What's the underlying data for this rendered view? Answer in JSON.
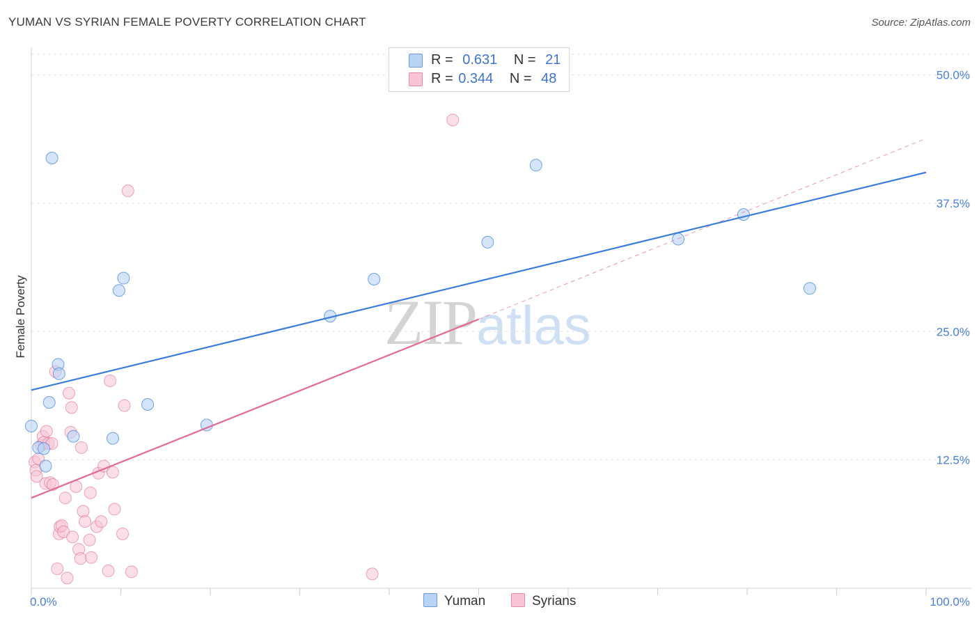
{
  "header": {
    "title": "YUMAN VS SYRIAN FEMALE POVERTY CORRELATION CHART",
    "source": "Source: ZipAtlas.com"
  },
  "watermark": {
    "zip": "ZIP",
    "atlas": "atlas"
  },
  "legend": {
    "items": [
      {
        "r_label": "R = ",
        "r_value": "0.631",
        "n_label": "N = ",
        "n_value": "21"
      },
      {
        "r_label": "R = ",
        "r_value": "0.344",
        "n_label": "N = ",
        "n_value": "48"
      }
    ]
  },
  "bottom_legend": {
    "yuman": "Yuman",
    "syrians": "Syrians"
  },
  "chart_data": {
    "type": "scatter",
    "title": "YUMAN VS SYRIAN FEMALE POVERTY CORRELATION CHART",
    "xlabel": "",
    "ylabel": "Female Poverty",
    "xlim": [
      0,
      100
    ],
    "ylim": [
      0,
      52
    ],
    "x_tick_labels": [
      "0.0%",
      "100.0%"
    ],
    "y_ticks": [
      12.5,
      25.0,
      37.5,
      50.0
    ],
    "y_tick_labels": [
      "12.5%",
      "25.0%",
      "37.5%",
      "50.0%"
    ],
    "grid": true,
    "legend_position": "top-center",
    "colors": {
      "yuman": "#3b7dd8",
      "yuman_fill": "#b9d3f5",
      "syrians": "#e06a93",
      "syrians_fill": "#f8c4d6"
    },
    "series": [
      {
        "name": "Yuman",
        "r": 0.631,
        "n": 21,
        "points": [
          [
            0.0,
            15.8
          ],
          [
            0.8,
            13.7
          ],
          [
            1.4,
            13.6
          ],
          [
            1.6,
            11.9
          ],
          [
            2.0,
            18.1
          ],
          [
            2.3,
            41.9
          ],
          [
            3.0,
            21.8
          ],
          [
            3.1,
            20.9
          ],
          [
            4.7,
            14.8
          ],
          [
            9.1,
            14.6
          ],
          [
            9.8,
            29.0
          ],
          [
            10.3,
            30.2
          ],
          [
            13.0,
            17.9
          ],
          [
            19.6,
            15.9
          ],
          [
            33.4,
            26.5
          ],
          [
            38.3,
            30.1
          ],
          [
            51.0,
            33.7
          ],
          [
            56.4,
            41.2
          ],
          [
            72.3,
            34.0
          ],
          [
            79.6,
            36.4
          ],
          [
            87.0,
            29.2
          ]
        ],
        "trend": [
          [
            0,
            19.3
          ],
          [
            100,
            40.5
          ]
        ]
      },
      {
        "name": "Syrians",
        "r": 0.344,
        "n": 48,
        "points": [
          [
            0.4,
            12.3
          ],
          [
            0.5,
            11.5
          ],
          [
            0.6,
            10.9
          ],
          [
            0.8,
            12.6
          ],
          [
            1.1,
            13.9
          ],
          [
            1.3,
            14.8
          ],
          [
            1.4,
            14.2
          ],
          [
            1.6,
            10.2
          ],
          [
            1.7,
            15.3
          ],
          [
            1.9,
            14.1
          ],
          [
            2.1,
            10.3
          ],
          [
            2.3,
            14.1
          ],
          [
            2.4,
            10.1
          ],
          [
            2.7,
            21.1
          ],
          [
            2.9,
            1.9
          ],
          [
            3.1,
            5.3
          ],
          [
            3.2,
            6.0
          ],
          [
            3.4,
            6.1
          ],
          [
            3.6,
            5.5
          ],
          [
            3.8,
            8.8
          ],
          [
            4.0,
            1.0
          ],
          [
            4.2,
            19.0
          ],
          [
            4.4,
            15.2
          ],
          [
            4.5,
            17.6
          ],
          [
            4.6,
            5.0
          ],
          [
            5.0,
            9.9
          ],
          [
            5.3,
            3.8
          ],
          [
            5.5,
            2.9
          ],
          [
            5.6,
            13.7
          ],
          [
            5.8,
            7.5
          ],
          [
            6.0,
            6.5
          ],
          [
            6.5,
            4.7
          ],
          [
            6.6,
            9.3
          ],
          [
            6.7,
            3.0
          ],
          [
            7.3,
            6.0
          ],
          [
            7.5,
            11.2
          ],
          [
            7.8,
            6.5
          ],
          [
            8.1,
            11.9
          ],
          [
            8.6,
            1.7
          ],
          [
            8.8,
            20.2
          ],
          [
            9.1,
            11.3
          ],
          [
            9.3,
            7.7
          ],
          [
            10.2,
            5.3
          ],
          [
            10.4,
            17.8
          ],
          [
            10.8,
            38.7
          ],
          [
            11.2,
            1.6
          ],
          [
            38.1,
            1.4
          ],
          [
            47.1,
            45.6
          ]
        ],
        "trend": [
          [
            0,
            8.8
          ],
          [
            50,
            26.2
          ]
        ],
        "trend_extension": [
          [
            50,
            26.2
          ],
          [
            100,
            43.8
          ]
        ]
      }
    ]
  }
}
